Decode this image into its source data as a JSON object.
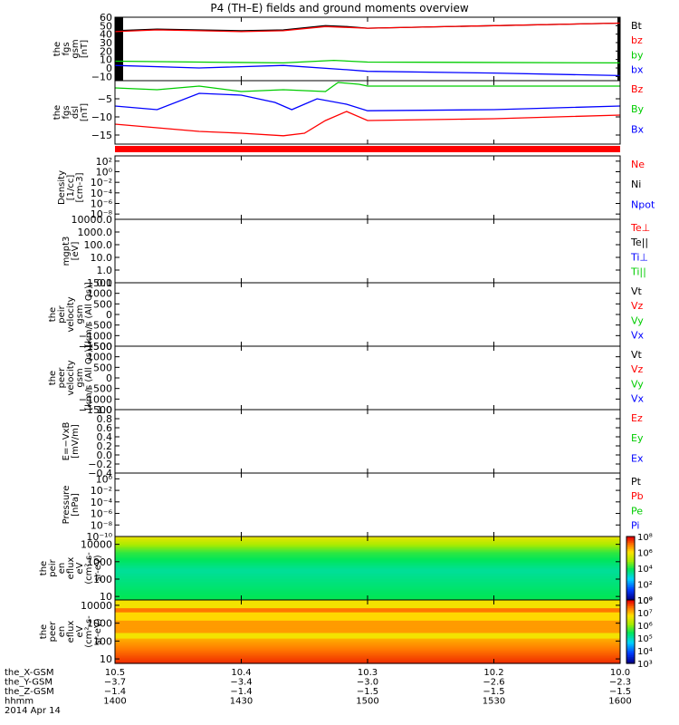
{
  "title": "P4 (TH–E) fields and ground moments overview",
  "panels": [
    {
      "id": "fgs-gsm",
      "ylabel": [
        "the",
        "fgs",
        "gsm",
        "[nT]"
      ],
      "scale": "linear",
      "ylim": [
        -15,
        60
      ],
      "ticks": [
        {
          "v": 60,
          "t": "60"
        },
        {
          "v": 50,
          "t": "50"
        },
        {
          "v": 40,
          "t": "40"
        },
        {
          "v": 30,
          "t": "30"
        },
        {
          "v": 20,
          "t": "20"
        },
        {
          "v": 10,
          "t": "10"
        },
        {
          "v": 0,
          "t": "0"
        },
        {
          "v": -10,
          "t": "−10"
        }
      ],
      "legend": [
        {
          "t": "Bt",
          "c": "#000000"
        },
        {
          "t": "bz",
          "c": "#ff0000"
        },
        {
          "t": "by",
          "c": "#00cc00"
        },
        {
          "t": "bx",
          "c": "#0000ff"
        }
      ],
      "extra": "blackbar"
    },
    {
      "id": "fgs-dsl",
      "ylabel": [
        "the",
        "fgs",
        "dsl",
        "[nT]"
      ],
      "scale": "linear",
      "ylim": [
        -17.5,
        0
      ],
      "ticks": [
        {
          "v": -5,
          "t": "−5"
        },
        {
          "v": -10,
          "t": "−10"
        },
        {
          "v": -15,
          "t": "−15"
        }
      ],
      "legend": [
        {
          "t": "Bz",
          "c": "#ff0000"
        },
        {
          "t": "By",
          "c": "#00cc00"
        },
        {
          "t": "Bx",
          "c": "#0000ff"
        }
      ],
      "extra": "redbar"
    },
    {
      "id": "density",
      "ylabel": [
        "Density",
        "[1/cc]",
        "[cm-3]"
      ],
      "scale": "log",
      "ylim": [
        -9,
        3
      ],
      "ticks": [
        {
          "v": 2,
          "t": "10²"
        },
        {
          "v": 0,
          "t": "10⁰"
        },
        {
          "v": -2,
          "t": "10⁻²"
        },
        {
          "v": -4,
          "t": "10⁻⁴"
        },
        {
          "v": -6,
          "t": "10⁻⁶"
        },
        {
          "v": -8,
          "t": "10⁻⁸"
        }
      ],
      "legend": [
        {
          "t": "Ne",
          "c": "#ff0000"
        },
        {
          "t": "Ni",
          "c": "#000000"
        },
        {
          "t": "Npot",
          "c": "#0000ff"
        }
      ]
    },
    {
      "id": "temperature",
      "ylabel": [
        "mgpt3",
        "[eV]"
      ],
      "scale": "log",
      "ylim": [
        -1,
        4
      ],
      "ticks": [
        {
          "v": 4,
          "t": "10000.0"
        },
        {
          "v": 3,
          "t": "1000.0"
        },
        {
          "v": 2,
          "t": "100.0"
        },
        {
          "v": 1,
          "t": "10.0"
        },
        {
          "v": 0,
          "t": "1.0"
        },
        {
          "v": -1,
          "t": "0.1"
        }
      ],
      "legend": [
        {
          "t": "Te⊥",
          "c": "#ff0000"
        },
        {
          "t": "Te||",
          "c": "#000000"
        },
        {
          "t": "Ti⊥",
          "c": "#0000ff"
        },
        {
          "t": "Ti||",
          "c": "#00cc00"
        }
      ]
    },
    {
      "id": "peir-velocity",
      "ylabel": [
        "the",
        "peir",
        "velocity",
        "gsm",
        "[km/s (All Qs)]"
      ],
      "scale": "linear",
      "ylim": [
        -1500,
        1500
      ],
      "ticks": [
        {
          "v": 1500,
          "t": "1500"
        },
        {
          "v": 1000,
          "t": "1000"
        },
        {
          "v": 500,
          "t": "500"
        },
        {
          "v": 0,
          "t": "0"
        },
        {
          "v": -500,
          "t": "−500"
        },
        {
          "v": -1000,
          "t": "−1000"
        },
        {
          "v": -1500,
          "t": "−1500"
        }
      ],
      "legend": [
        {
          "t": "Vt",
          "c": "#000000"
        },
        {
          "t": "Vz",
          "c": "#ff0000"
        },
        {
          "t": "Vy",
          "c": "#00cc00"
        },
        {
          "t": "Vx",
          "c": "#0000ff"
        }
      ]
    },
    {
      "id": "peer-velocity",
      "ylabel": [
        "the",
        "peer",
        "velocity",
        "gsm",
        "[km/s (All Qs)]"
      ],
      "scale": "linear",
      "ylim": [
        -1500,
        1500
      ],
      "ticks": [
        {
          "v": 1500,
          "t": "1500"
        },
        {
          "v": 1000,
          "t": "1000"
        },
        {
          "v": 500,
          "t": "500"
        },
        {
          "v": 0,
          "t": "0"
        },
        {
          "v": -500,
          "t": "−500"
        },
        {
          "v": -1000,
          "t": "−1000"
        },
        {
          "v": -1500,
          "t": "−1500"
        }
      ],
      "legend": [
        {
          "t": "Vt",
          "c": "#000000"
        },
        {
          "t": "Vz",
          "c": "#ff0000"
        },
        {
          "t": "Vy",
          "c": "#00cc00"
        },
        {
          "t": "Vx",
          "c": "#0000ff"
        }
      ]
    },
    {
      "id": "efield",
      "ylabel": [
        "E=−VxB",
        "[mV/m]"
      ],
      "scale": "linear",
      "ylim": [
        -0.4,
        1.0
      ],
      "ticks": [
        {
          "v": 1.0,
          "t": "1.0"
        },
        {
          "v": 0.8,
          "t": "0.8"
        },
        {
          "v": 0.6,
          "t": "0.6"
        },
        {
          "v": 0.4,
          "t": "0.4"
        },
        {
          "v": 0.2,
          "t": "0.2"
        },
        {
          "v": 0.0,
          "t": "0.0"
        },
        {
          "v": -0.2,
          "t": "−0.2"
        },
        {
          "v": -0.4,
          "t": "−0.4"
        }
      ],
      "legend": [
        {
          "t": "Ez",
          "c": "#ff0000"
        },
        {
          "t": "Ey",
          "c": "#00cc00"
        },
        {
          "t": "Ex",
          "c": "#0000ff"
        }
      ]
    },
    {
      "id": "pressure",
      "ylabel": [
        "Pressure",
        "[nPa]"
      ],
      "scale": "log",
      "ylim": [
        -10,
        1
      ],
      "ticks": [
        {
          "v": 0,
          "t": "10⁰"
        },
        {
          "v": -2,
          "t": "10⁻²"
        },
        {
          "v": -4,
          "t": "10⁻⁴"
        },
        {
          "v": -6,
          "t": "10⁻⁶"
        },
        {
          "v": -8,
          "t": "10⁻⁸"
        },
        {
          "v": -10,
          "t": "10⁻¹⁰"
        }
      ],
      "legend": [
        {
          "t": "Pt",
          "c": "#000000"
        },
        {
          "t": "Pb",
          "c": "#ff0000"
        },
        {
          "t": "Pe",
          "c": "#00cc00"
        },
        {
          "t": "Pi",
          "c": "#0000ff"
        }
      ]
    },
    {
      "id": "peir-spec",
      "ylabel": [
        "the",
        "peir",
        "en",
        "eflux",
        "eV",
        "(cm²-s-",
        "sr-eV)"
      ],
      "scale": "log",
      "ylim": [
        0.8,
        4.45
      ],
      "ticks": [
        {
          "v": 4,
          "t": "10000"
        },
        {
          "v": 3,
          "t": "1000"
        },
        {
          "v": 2,
          "t": "100"
        },
        {
          "v": 1,
          "t": "10"
        }
      ],
      "legend": [],
      "extra": "spectrogram",
      "colorbar": {
        "min": 0,
        "max": 8,
        "ticks": [
          {
            "v": 8,
            "t": "10⁸"
          },
          {
            "v": 6,
            "t": "10⁶"
          },
          {
            "v": 4,
            "t": "10⁴"
          },
          {
            "v": 2,
            "t": "10²"
          },
          {
            "v": 0,
            "t": "10⁰"
          }
        ]
      }
    },
    {
      "id": "peer-spec",
      "ylabel": [
        "the",
        "peer",
        "en",
        "eflux",
        "eV",
        "(cm²-s-",
        "sr-eV)"
      ],
      "scale": "log",
      "ylim": [
        0.75,
        4.3
      ],
      "ticks": [
        {
          "v": 4,
          "t": "10000"
        },
        {
          "v": 3,
          "t": "1000"
        },
        {
          "v": 2,
          "t": "100"
        },
        {
          "v": 1,
          "t": "10"
        }
      ],
      "legend": [],
      "extra": "spectrogram",
      "colorbar": {
        "min": 3,
        "max": 8,
        "ticks": [
          {
            "v": 8,
            "t": "10⁸"
          },
          {
            "v": 7,
            "t": "10⁷"
          },
          {
            "v": 6,
            "t": "10⁶"
          },
          {
            "v": 5,
            "t": "10⁵"
          },
          {
            "v": 4,
            "t": "10⁴"
          },
          {
            "v": 3,
            "t": "10³"
          }
        ]
      }
    }
  ],
  "xaxis": {
    "labels": [
      "the_X-GSM",
      "the_Y-GSM",
      "the_Z-GSM",
      "hhmm",
      "2014 Apr 14"
    ],
    "columns": [
      {
        "t": 0,
        "vals": [
          "10.5",
          "−3.7",
          "−1.4",
          "1400"
        ]
      },
      {
        "t": 30,
        "vals": [
          "10.4",
          "−3.4",
          "−1.4",
          "1430"
        ]
      },
      {
        "t": 60,
        "vals": [
          "10.3",
          "−3.0",
          "−1.5",
          "1500"
        ]
      },
      {
        "t": 90,
        "vals": [
          "10.2",
          "−2.6",
          "−1.5",
          "1530"
        ]
      },
      {
        "t": 120,
        "vals": [
          "10.0",
          "−2.3",
          "−1.5",
          "1600"
        ]
      }
    ]
  },
  "chart_data": {
    "type": "line",
    "x_unit": "minutes after 14:00 UT",
    "x_range": [
      0,
      120
    ],
    "fgs_gsm": {
      "series": [
        {
          "name": "Bt",
          "color": "#000000",
          "x": [
            0,
            10,
            20,
            30,
            40,
            50,
            55,
            60,
            90,
            120
          ],
          "values": [
            44,
            46,
            45,
            44,
            45,
            50,
            49,
            47,
            50,
            53
          ]
        },
        {
          "name": "bz",
          "color": "#ff0000",
          "x": [
            0,
            10,
            20,
            30,
            40,
            50,
            55,
            60,
            90,
            120
          ],
          "values": [
            43,
            45,
            44,
            43,
            44,
            49,
            48,
            47,
            50,
            53
          ]
        },
        {
          "name": "by",
          "color": "#00cc00",
          "x": [
            0,
            20,
            40,
            52,
            60,
            120
          ],
          "values": [
            8,
            7,
            6,
            9,
            7,
            6
          ]
        },
        {
          "name": "bx",
          "color": "#0000ff",
          "x": [
            0,
            20,
            40,
            55,
            60,
            90,
            120
          ],
          "values": [
            3,
            0,
            3,
            -2,
            -4,
            -6,
            -9
          ]
        }
      ]
    },
    "fgs_dsl": {
      "series": [
        {
          "name": "Bz",
          "color": "#ff0000",
          "x": [
            0,
            10,
            20,
            30,
            40,
            45,
            50,
            55,
            60,
            90,
            120
          ],
          "values": [
            -12,
            -13,
            -14,
            -14.5,
            -15.2,
            -14.5,
            -11,
            -8.5,
            -11,
            -10.5,
            -9.5
          ]
        },
        {
          "name": "By",
          "color": "#00cc00",
          "x": [
            0,
            10,
            20,
            30,
            40,
            50,
            53,
            58,
            60,
            120
          ],
          "values": [
            -2,
            -2.5,
            -1.5,
            -3,
            -2.5,
            -3,
            -0.5,
            -1,
            -1.5,
            -1.5
          ]
        },
        {
          "name": "Bx",
          "color": "#0000ff",
          "x": [
            0,
            10,
            20,
            30,
            38,
            42,
            48,
            55,
            60,
            90,
            120
          ],
          "values": [
            -7,
            -8,
            -3.5,
            -4,
            -6,
            -8,
            -5,
            -6.5,
            -8.3,
            -8,
            -7
          ]
        }
      ]
    }
  }
}
